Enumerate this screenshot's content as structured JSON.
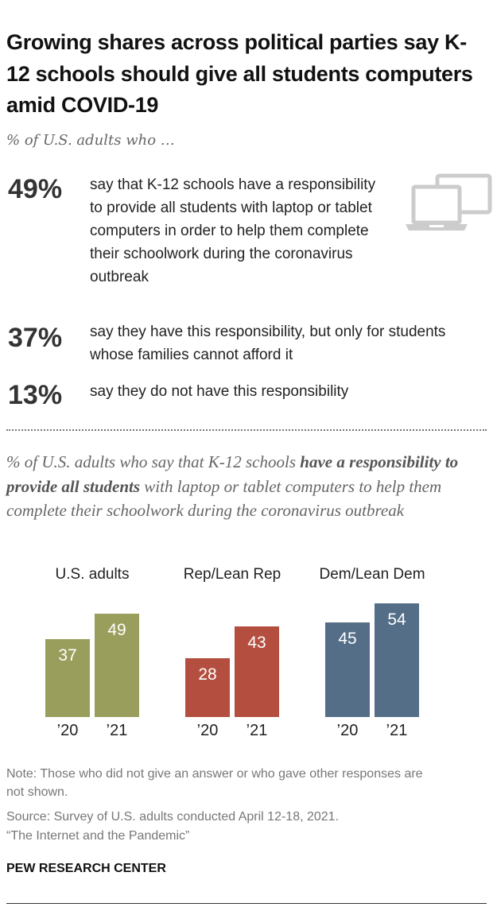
{
  "title": "Growing shares across political parties say K-12 schools should give all students computers amid COVID-19",
  "subtitle": "% of U.S. adults who …",
  "statements": [
    {
      "pct": "49%",
      "text": "say that K-12 schools have a responsibility to provide all students with laptop or tablet computers in order to help them complete their schoolwork during the coronavirus outbreak"
    },
    {
      "pct": "37%",
      "text": "say they have this responsibility, but only for students whose families cannot afford it"
    },
    {
      "pct": "13%",
      "text": "say they do not have this responsibility"
    }
  ],
  "icon": "laptop-tablet-icon",
  "chart_subtitle": {
    "pre": "% of U.S. adults who say that K-12 schools ",
    "bold": "have a responsibility to provide all students",
    "post": " with laptop or tablet computers to help them complete their schoolwork during the coronavirus outbreak"
  },
  "chart_data": {
    "type": "bar",
    "groups": [
      {
        "name": "U.S. adults",
        "color": "#9a9e5c",
        "categories": [
          "’20",
          "’21"
        ],
        "values": [
          37,
          49
        ]
      },
      {
        "name": "Rep/Lean Rep",
        "color": "#b44f40",
        "categories": [
          "’20",
          "’21"
        ],
        "values": [
          28,
          43
        ]
      },
      {
        "name": "Dem/Lean Dem",
        "color": "#546e87",
        "categories": [
          "’20",
          "’21"
        ],
        "values": [
          45,
          54
        ]
      }
    ],
    "grid": false
  },
  "notes": {
    "note": "Note: Those who did not give an answer or who gave other responses are not shown.",
    "source": "Source: Survey of U.S. adults conducted April 12-18, 2021.",
    "report": "“The Internet and the Pandemic”"
  },
  "brand": "PEW RESEARCH CENTER"
}
